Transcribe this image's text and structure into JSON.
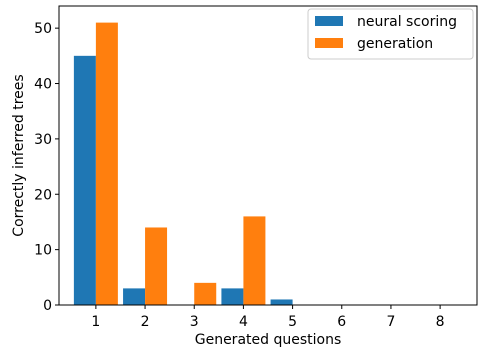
{
  "chart_data": {
    "type": "bar",
    "categories": [
      "1",
      "2",
      "3",
      "4",
      "5",
      "6",
      "7",
      "8"
    ],
    "series": [
      {
        "name": "neural scoring",
        "color": "#1f77b4",
        "values": [
          45,
          3,
          0,
          3,
          1,
          0,
          0,
          0
        ]
      },
      {
        "name": "generation",
        "color": "#ff7f0e",
        "values": [
          51,
          14,
          4,
          16,
          0,
          0,
          0,
          0
        ]
      }
    ],
    "title": "",
    "xlabel": "Generated questions",
    "ylabel": "Correctly inferred trees",
    "ylim": [
      0,
      54
    ],
    "yticks": [
      0,
      10,
      20,
      30,
      40,
      50
    ],
    "grid": false,
    "legend_position": "top-right"
  }
}
